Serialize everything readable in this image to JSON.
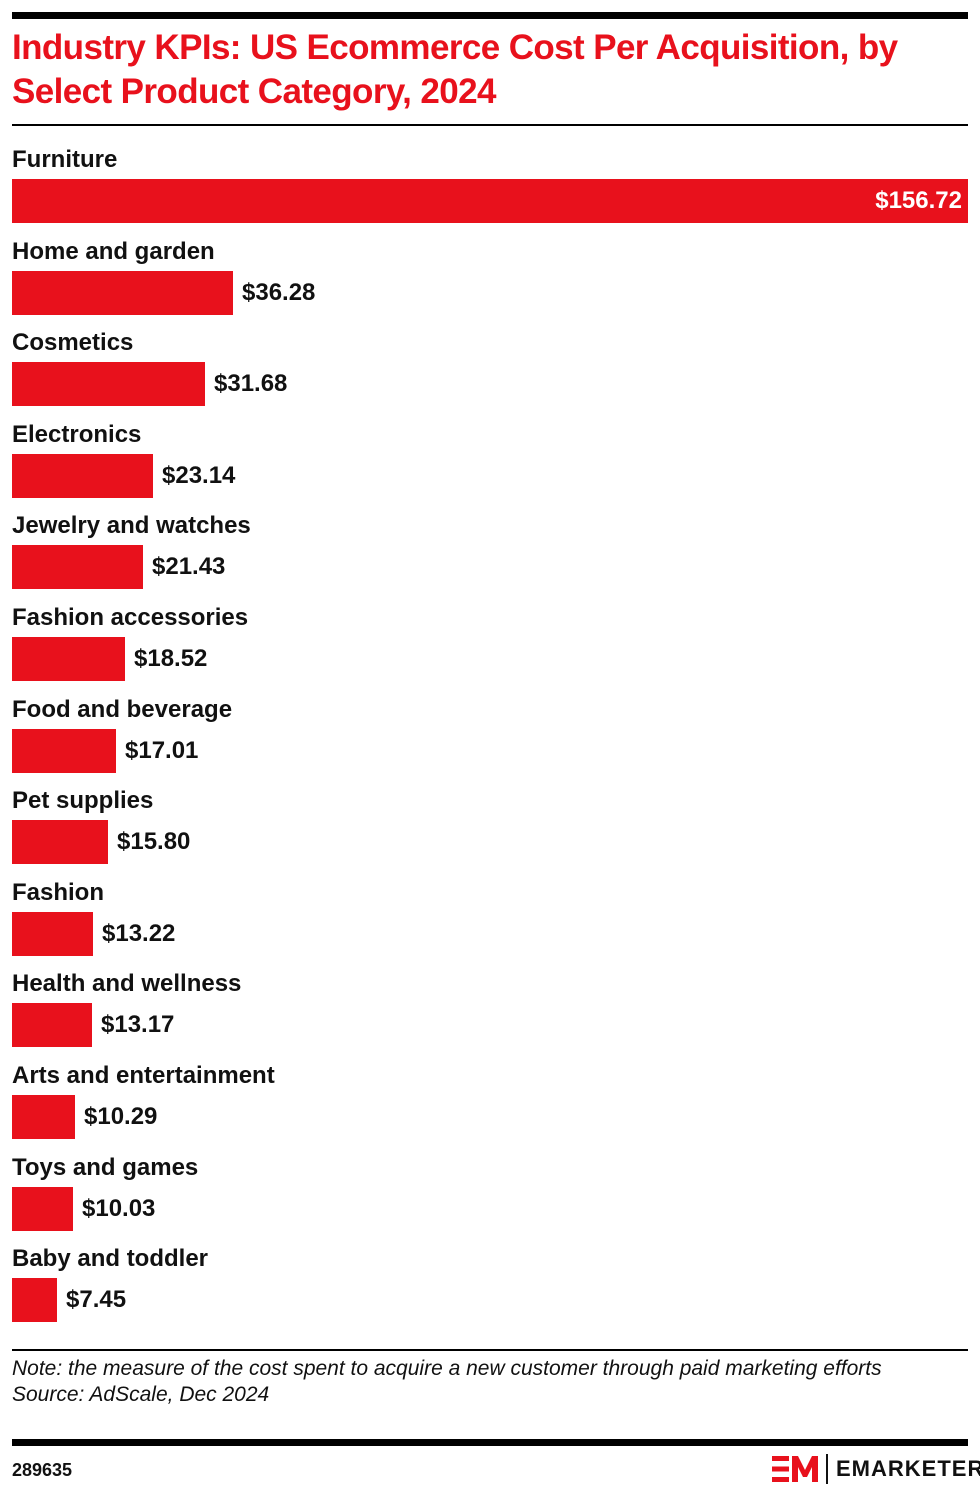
{
  "title": "Industry KPIs: US Ecommerce Cost Per Acquisition, by Select Product Category, 2024",
  "colors": {
    "bar": "#e8111c",
    "title": "#e8111c",
    "text": "#111111"
  },
  "note": "Note: the measure of the cost spent to acquire a new customer through paid marketing efforts",
  "source": "Source: AdScale, Dec 2024",
  "chart_id": "289635",
  "brand": {
    "name": "EMARKETER",
    "mark": "EM"
  },
  "chart_data": {
    "type": "bar",
    "orientation": "horizontal",
    "title": "Industry KPIs: US Ecommerce Cost Per Acquisition, by Select Product Category, 2024",
    "xlabel": "",
    "ylabel": "",
    "unit": "USD",
    "grid": false,
    "legend": null,
    "categories": [
      "Furniture",
      "Home and garden",
      "Cosmetics",
      "Electronics",
      "Jewelry and watches",
      "Fashion accessories",
      "Food and beverage",
      "Pet supplies",
      "Fashion",
      "Health and wellness",
      "Arts and entertainment",
      "Toys and games",
      "Baby and toddler"
    ],
    "values": [
      156.72,
      36.28,
      31.68,
      23.14,
      21.43,
      18.52,
      17.01,
      15.8,
      13.22,
      13.17,
      10.29,
      10.03,
      7.45
    ],
    "labels": [
      "$156.72",
      "$36.28",
      "$31.68",
      "$23.14",
      "$21.43",
      "$18.52",
      "$17.01",
      "$15.80",
      "$13.22",
      "$13.17",
      "$10.29",
      "$10.03",
      "$7.45"
    ],
    "xlim": [
      0,
      156.72
    ],
    "note": "Note: the measure of the cost spent to acquire a new customer through paid marketing efforts",
    "source": "Source: AdScale, Dec 2024"
  }
}
